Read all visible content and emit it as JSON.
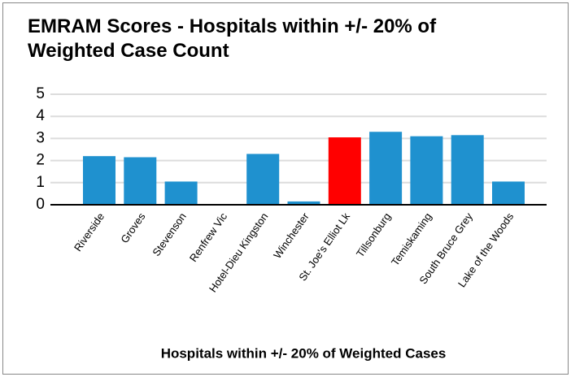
{
  "chart_data": {
    "type": "bar",
    "title": "EMRAM Scores - Hospitals within +/- 20% of Weighted Case Count",
    "x_label": "Hospitals within +/- 20% of Weighted Cases",
    "categories": [
      "Riverside",
      "Groves",
      "Stevenson",
      "Renfrew Vic",
      "Hotel-Dieu Kingston",
      "Winchester",
      "St. Joe's Elliot Lk",
      "Tillsonburg",
      "Temiskaming",
      "South Bruce Grey",
      "Lake of the Woods"
    ],
    "values": [
      2.2,
      2.15,
      1.05,
      0,
      2.3,
      0.15,
      3.05,
      3.3,
      3.1,
      3.15,
      1.05
    ],
    "colors": [
      "#1f91cf",
      "#1f91cf",
      "#1f91cf",
      "#1f91cf",
      "#1f91cf",
      "#1f91cf",
      "#ff0000",
      "#1f91cf",
      "#1f91cf",
      "#1f91cf",
      "#1f91cf"
    ],
    "ylim": [
      0,
      5
    ],
    "yticks": [
      0,
      1,
      2,
      3,
      4,
      5
    ],
    "grid": true
  }
}
